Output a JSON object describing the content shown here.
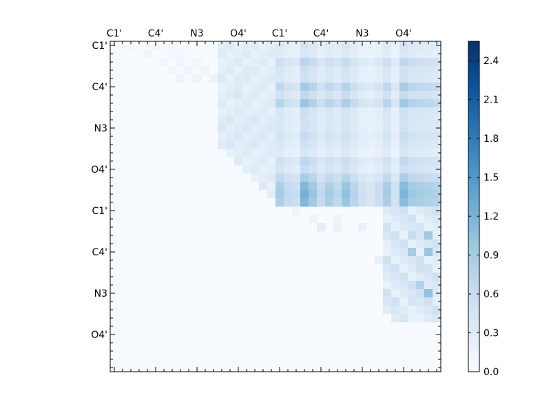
{
  "chart_data": {
    "type": "heatmap",
    "title": "",
    "xlabel": "",
    "ylabel": "",
    "colormap": "Blues",
    "color_low": "#f7fbff",
    "color_high": "#08306b",
    "n": 40,
    "vmin": 0.0,
    "vmax": 2.55,
    "x_tick_labels": [
      "C1'",
      "C4'",
      "N3",
      "O4'",
      "C1'",
      "C4'",
      "N3",
      "O4'"
    ],
    "y_tick_labels": [
      "C1'",
      "C4'",
      "N3",
      "O4'",
      "C1'",
      "C4'",
      "N3",
      "O4'"
    ],
    "tick_label_index": [
      0,
      5,
      10,
      15,
      20,
      25,
      30,
      35
    ],
    "colorbar_ticks": [
      "0.0",
      "0.3",
      "0.6",
      "0.9",
      "1.2",
      "1.5",
      "1.8",
      "2.1",
      "2.4"
    ],
    "colorbar_tick_values": [
      0.0,
      0.3,
      0.6,
      0.9,
      1.2,
      1.5,
      1.8,
      2.1,
      2.4
    ],
    "row_profile": [
      0.7,
      0.6,
      1.0,
      0.75,
      0.7,
      1.25,
      0.9,
      1.35,
      0.75,
      0.7,
      0.7,
      0.85,
      0.7,
      0.55,
      0.95,
      0.8,
      1.2,
      1.55,
      1.65,
      1.55
    ],
    "col_profile": [
      1.0,
      0.75,
      0.65,
      1.35,
      1.1,
      0.75,
      1.0,
      0.8,
      1.15,
      0.85,
      0.6,
      0.5,
      0.65,
      1.0,
      0.55,
      1.3,
      1.05,
      1.0,
      0.95,
      0.9
    ],
    "block_upper_left": [
      {
        "row": 0,
        "col": 2,
        "value": 0.08
      },
      {
        "row": 0,
        "col": 5,
        "value": 0.1
      },
      {
        "row": 0,
        "col": 7,
        "value": 0.08
      },
      {
        "row": 1,
        "col": 4,
        "value": 0.1
      },
      {
        "row": 1,
        "col": 7,
        "value": 0.08
      },
      {
        "row": 1,
        "col": 8,
        "value": 0.08
      },
      {
        "row": 2,
        "col": 6,
        "value": 0.1
      },
      {
        "row": 2,
        "col": 8,
        "value": 0.12
      },
      {
        "row": 2,
        "col": 10,
        "value": 0.1
      },
      {
        "row": 3,
        "col": 7,
        "value": 0.1
      },
      {
        "row": 3,
        "col": 9,
        "value": 0.12
      },
      {
        "row": 3,
        "col": 11,
        "value": 0.12
      },
      {
        "row": 4,
        "col": 8,
        "value": 0.14
      },
      {
        "row": 4,
        "col": 10,
        "value": 0.15
      },
      {
        "row": 4,
        "col": 12,
        "value": 0.15
      },
      {
        "row": 2,
        "col": 15,
        "value": 0.35
      },
      {
        "row": 4,
        "col": 15,
        "value": 0.3
      },
      {
        "row": 6,
        "col": 15,
        "value": 0.4
      },
      {
        "row": 3,
        "col": 16,
        "value": 0.3
      },
      {
        "row": 8,
        "col": 16,
        "value": 0.25
      }
    ],
    "block_lower_right": [
      {
        "row": 20,
        "col": 22,
        "value": 0.15
      },
      {
        "row": 21,
        "col": 24,
        "value": 0.15
      },
      {
        "row": 21,
        "col": 27,
        "value": 0.15
      },
      {
        "row": 22,
        "col": 25,
        "value": 0.25
      },
      {
        "row": 22,
        "col": 27,
        "value": 0.2
      },
      {
        "row": 22,
        "col": 30,
        "value": 0.2
      },
      {
        "row": 22,
        "col": 35,
        "value": 0.35
      },
      {
        "row": 22,
        "col": 37,
        "value": 0.45
      },
      {
        "row": 23,
        "col": 36,
        "value": 0.6
      },
      {
        "row": 23,
        "col": 38,
        "value": 0.95
      },
      {
        "row": 24,
        "col": 33,
        "value": 0.2
      },
      {
        "row": 25,
        "col": 36,
        "value": 0.9
      },
      {
        "row": 25,
        "col": 38,
        "value": 1.0
      },
      {
        "row": 26,
        "col": 32,
        "value": 0.2
      },
      {
        "row": 27,
        "col": 37,
        "value": 0.5
      },
      {
        "row": 29,
        "col": 37,
        "value": 0.8
      },
      {
        "row": 30,
        "col": 38,
        "value": 1.05
      },
      {
        "row": 31,
        "col": 36,
        "value": 0.45
      },
      {
        "row": 32,
        "col": 35,
        "value": 0.3
      },
      {
        "row": 33,
        "col": 36,
        "value": 0.2
      }
    ]
  }
}
